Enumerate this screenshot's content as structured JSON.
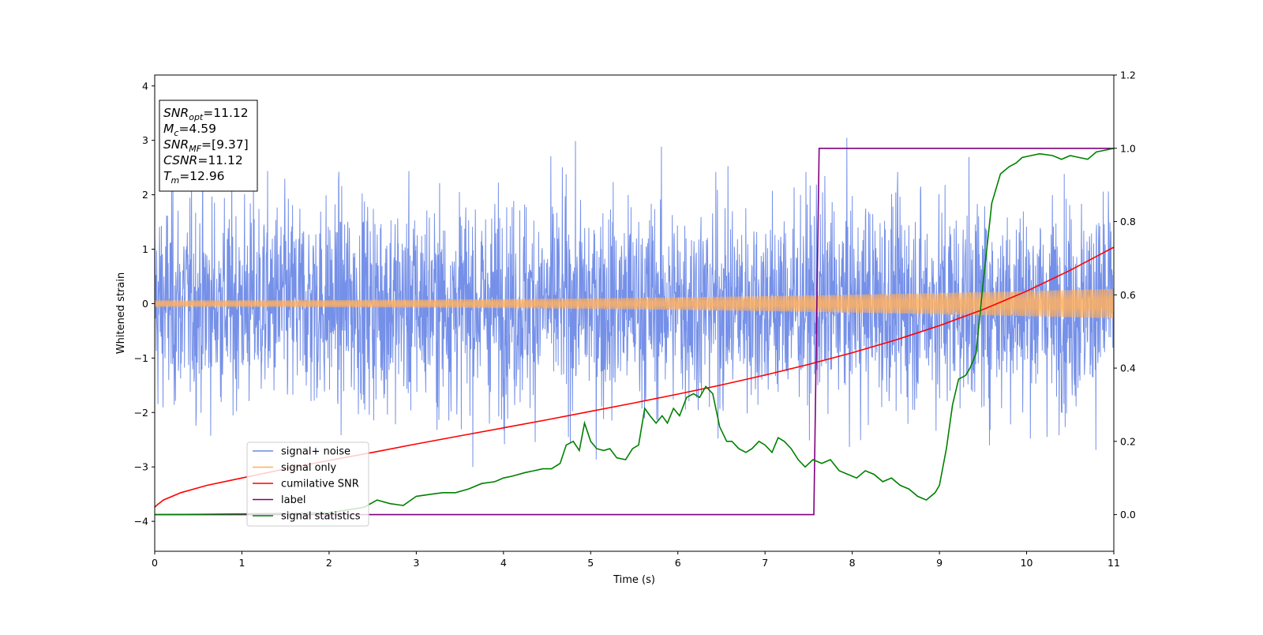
{
  "chart_data": {
    "type": "line",
    "title": "",
    "xlabel": "Time (s)",
    "ylabel": "Whitened strain",
    "y2label": "",
    "xlim": [
      0,
      11
    ],
    "ylim": [
      -4.55,
      4.2
    ],
    "y2lim": [
      -0.1,
      1.2
    ],
    "x_ticks": [
      0,
      1,
      2,
      3,
      4,
      5,
      6,
      7,
      8,
      9,
      10,
      11
    ],
    "y_ticks": [
      -4,
      -3,
      -2,
      -1,
      0,
      1,
      2,
      3,
      4
    ],
    "y2_ticks": [
      0.0,
      0.2,
      0.4,
      0.6,
      0.8,
      1.0,
      1.2
    ],
    "grid": false,
    "legend_placement": "lower-left",
    "annotation_box": {
      "lines": [
        {
          "sym": "SNR",
          "sub": "opt",
          "val": "=11.12"
        },
        {
          "sym": "M",
          "sub": "c",
          "val": "=4.59"
        },
        {
          "sym": "SNR",
          "sub": "MF",
          "val": "=[9.37]"
        },
        {
          "sym": "CSNR",
          "sub": "",
          "val": "=11.12"
        },
        {
          "sym": "T",
          "sub": "m",
          "val": "=12.96"
        }
      ]
    },
    "series": [
      {
        "name": "signal+ noise",
        "axis": "left",
        "color": "#6b88e6",
        "kind": "noise",
        "std": 1.0,
        "range_min": -4.15,
        "range_max": 3.85
      },
      {
        "name": "signal only",
        "axis": "left",
        "color": "#ffb060",
        "kind": "chirp",
        "amplitude_start": 0.06,
        "amplitude_end": 0.27
      },
      {
        "name": "cumilative SNR",
        "axis": "right",
        "color": "#ff0000",
        "x": [
          0,
          0.02,
          0.1,
          0.3,
          0.6,
          1,
          1.5,
          2,
          2.5,
          3,
          3.5,
          4,
          4.5,
          5,
          5.5,
          6,
          6.5,
          7,
          7.5,
          8,
          8.5,
          9,
          9.5,
          10,
          10.5,
          11
        ],
        "y": [
          0.02,
          0.025,
          0.04,
          0.06,
          0.08,
          0.1,
          0.125,
          0.148,
          0.17,
          0.193,
          0.215,
          0.237,
          0.259,
          0.282,
          0.305,
          0.329,
          0.354,
          0.381,
          0.41,
          0.442,
          0.477,
          0.516,
          0.56,
          0.61,
          0.667,
          0.73
        ]
      },
      {
        "name": "label",
        "axis": "right",
        "color": "#800080",
        "x": [
          0,
          7.56,
          7.62,
          11
        ],
        "y": [
          0.0,
          0.0,
          1.0,
          1.0
        ]
      },
      {
        "name": "signal statistics",
        "axis": "right",
        "color": "#008000",
        "x": [
          0,
          1.0,
          2.0,
          2.4,
          2.55,
          2.7,
          2.85,
          3.0,
          3.15,
          3.3,
          3.45,
          3.6,
          3.75,
          3.9,
          4.0,
          4.1,
          4.25,
          4.35,
          4.45,
          4.55,
          4.65,
          4.72,
          4.8,
          4.87,
          4.93,
          5.0,
          5.07,
          5.15,
          5.22,
          5.3,
          5.4,
          5.48,
          5.55,
          5.62,
          5.68,
          5.75,
          5.82,
          5.88,
          5.95,
          6.02,
          6.1,
          6.18,
          6.25,
          6.32,
          6.4,
          6.48,
          6.56,
          6.62,
          6.7,
          6.78,
          6.85,
          6.93,
          7.0,
          7.08,
          7.15,
          7.22,
          7.3,
          7.38,
          7.46,
          7.55,
          7.65,
          7.75,
          7.85,
          7.95,
          8.05,
          8.15,
          8.25,
          8.35,
          8.45,
          8.55,
          8.65,
          8.75,
          8.85,
          8.95,
          9.0,
          9.08,
          9.15,
          9.22,
          9.3,
          9.35,
          9.42,
          9.5,
          9.6,
          9.7,
          9.8,
          9.88,
          9.95,
          10.05,
          10.15,
          10.3,
          10.4,
          10.5,
          10.6,
          10.7,
          10.8,
          10.9,
          11
        ],
        "y": [
          0.0,
          0.002,
          0.005,
          0.02,
          0.04,
          0.03,
          0.025,
          0.05,
          0.055,
          0.06,
          0.06,
          0.07,
          0.085,
          0.09,
          0.1,
          0.105,
          0.115,
          0.12,
          0.125,
          0.125,
          0.14,
          0.19,
          0.2,
          0.175,
          0.25,
          0.2,
          0.18,
          0.175,
          0.18,
          0.155,
          0.15,
          0.18,
          0.19,
          0.29,
          0.27,
          0.25,
          0.27,
          0.25,
          0.29,
          0.27,
          0.32,
          0.33,
          0.32,
          0.35,
          0.33,
          0.24,
          0.2,
          0.2,
          0.18,
          0.17,
          0.18,
          0.2,
          0.19,
          0.17,
          0.21,
          0.2,
          0.18,
          0.15,
          0.13,
          0.15,
          0.14,
          0.15,
          0.12,
          0.11,
          0.1,
          0.12,
          0.11,
          0.09,
          0.1,
          0.08,
          0.07,
          0.05,
          0.04,
          0.06,
          0.08,
          0.18,
          0.3,
          0.37,
          0.38,
          0.4,
          0.44,
          0.63,
          0.85,
          0.93,
          0.95,
          0.96,
          0.975,
          0.98,
          0.985,
          0.98,
          0.97,
          0.98,
          0.975,
          0.97,
          0.99,
          0.995,
          1.0
        ]
      }
    ]
  }
}
